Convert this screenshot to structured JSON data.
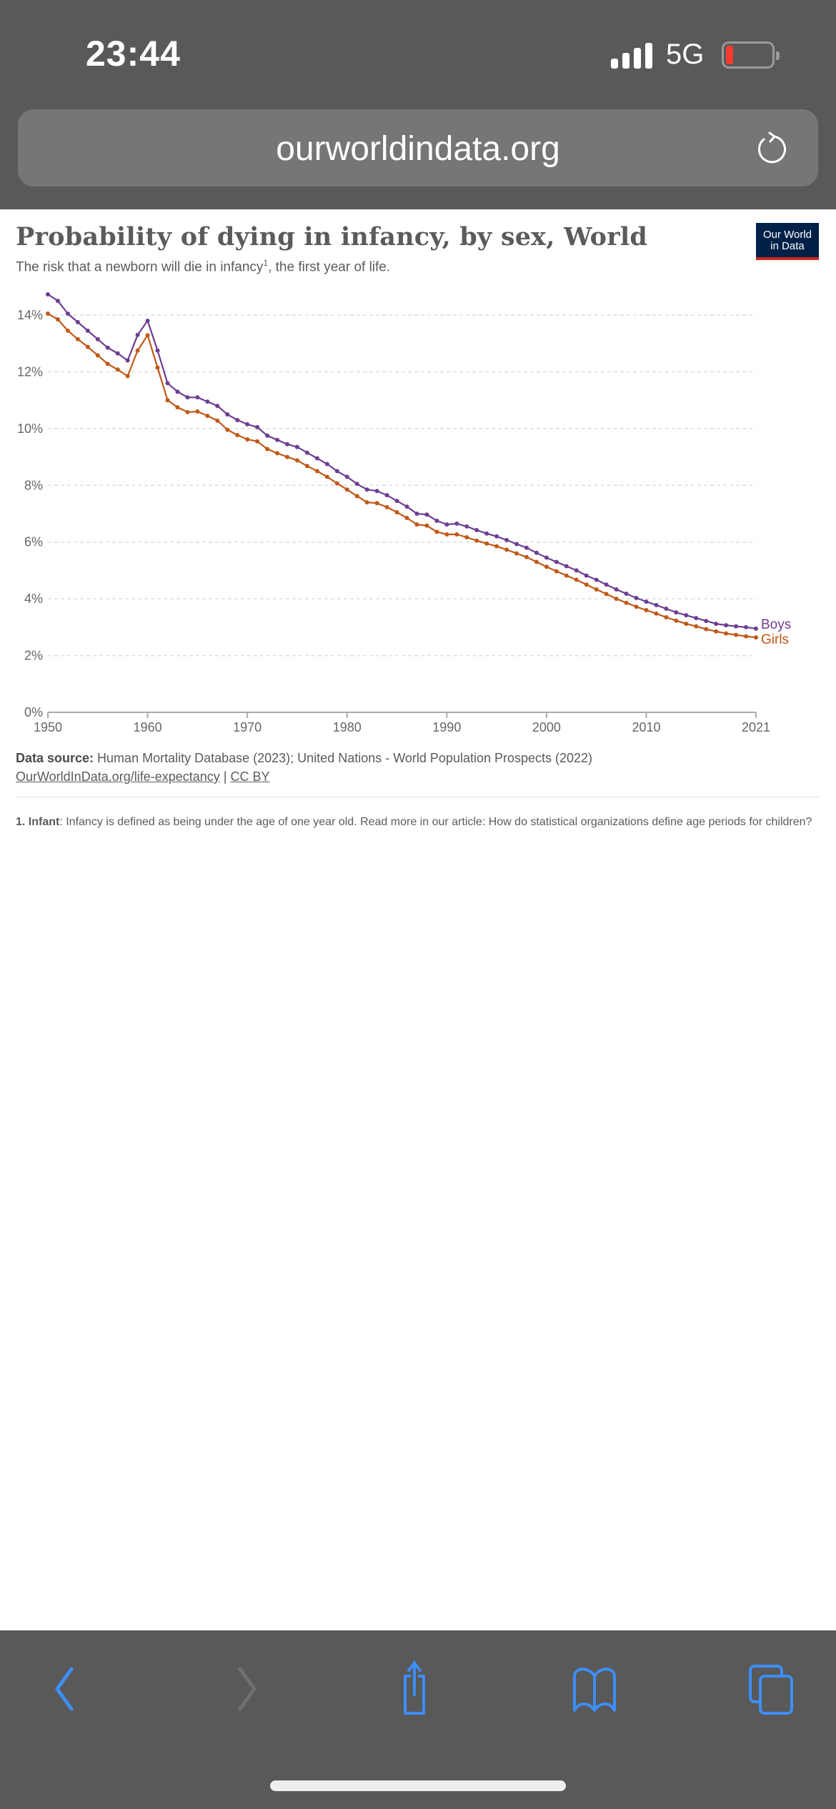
{
  "status_bar": {
    "time": "23:44",
    "network": "5G",
    "battery_level": "low"
  },
  "browser": {
    "url": "ourworldindata.org",
    "reload_icon": "reload-icon",
    "toolbar": {
      "back_icon": "chevron-left-icon",
      "forward_icon": "chevron-right-icon",
      "share_icon": "share-icon",
      "bookmarks_icon": "book-icon",
      "tabs_icon": "tabs-icon"
    }
  },
  "page": {
    "logo_line1": "Our World",
    "logo_line2": "in Data",
    "source_label": "Data source:",
    "source_text": " Human Mortality Database (2023); United Nations - World Population Prospects (2022)",
    "link_text": "OurWorldInData.org/life-expectancy",
    "link_sep": " | ",
    "license_text": "CC BY",
    "footnote_label": "1. Infant",
    "footnote_text": ": Infancy is defined as being under the age of one year old. Read more in our article: How do statistical organizations define age periods for children?"
  },
  "chart_data": {
    "type": "line",
    "title": "Probability of dying in infancy, by sex, World",
    "subtitle": "The risk that a newborn will die in infancy",
    "subtitle_sup": "1",
    "subtitle_end": ", the first year of life.",
    "xlabel": "",
    "ylabel": "",
    "ylim": [
      0,
      14
    ],
    "xlim": [
      1950,
      2021
    ],
    "y_ticks": [
      "0%",
      "2%",
      "4%",
      "6%",
      "8%",
      "10%",
      "12%",
      "14%"
    ],
    "y_tick_values": [
      0,
      2,
      4,
      6,
      8,
      10,
      12,
      14
    ],
    "x_ticks": [
      "1950",
      "1960",
      "1970",
      "1980",
      "1990",
      "2000",
      "2010",
      "2021"
    ],
    "x_tick_values": [
      1950,
      1960,
      1970,
      1980,
      1990,
      2000,
      2010,
      2021
    ],
    "grid": "horizontal-dashed",
    "legend": "right-inline",
    "x": [
      1950,
      1951,
      1952,
      1953,
      1954,
      1955,
      1956,
      1957,
      1958,
      1959,
      1960,
      1961,
      1962,
      1963,
      1964,
      1965,
      1966,
      1967,
      1968,
      1969,
      1970,
      1971,
      1972,
      1973,
      1974,
      1975,
      1976,
      1977,
      1978,
      1979,
      1980,
      1981,
      1982,
      1983,
      1984,
      1985,
      1986,
      1987,
      1988,
      1989,
      1990,
      1991,
      1992,
      1993,
      1994,
      1995,
      1996,
      1997,
      1998,
      1999,
      2000,
      2001,
      2002,
      2003,
      2004,
      2005,
      2006,
      2007,
      2008,
      2009,
      2010,
      2011,
      2012,
      2013,
      2014,
      2015,
      2016,
      2017,
      2018,
      2019,
      2020,
      2021
    ],
    "series": [
      {
        "name": "Boys",
        "color": "#6d3e91",
        "values": [
          14.73,
          14.5,
          14.05,
          13.75,
          13.45,
          13.15,
          12.85,
          12.65,
          12.4,
          13.3,
          13.8,
          12.75,
          11.6,
          11.3,
          11.1,
          11.1,
          10.95,
          10.8,
          10.5,
          10.3,
          10.15,
          10.05,
          9.75,
          9.6,
          9.45,
          9.35,
          9.15,
          8.95,
          8.75,
          8.5,
          8.3,
          8.05,
          7.85,
          7.8,
          7.65,
          7.45,
          7.25,
          7.0,
          6.97,
          6.75,
          6.62,
          6.65,
          6.55,
          6.42,
          6.3,
          6.2,
          6.07,
          5.93,
          5.8,
          5.62,
          5.45,
          5.3,
          5.15,
          5.0,
          4.82,
          4.67,
          4.5,
          4.33,
          4.18,
          4.03,
          3.9,
          3.78,
          3.65,
          3.52,
          3.42,
          3.32,
          3.22,
          3.12,
          3.07,
          3.03,
          3.0,
          2.95
        ]
      },
      {
        "name": "Girls",
        "color": "#c05917",
        "values": [
          14.05,
          13.85,
          13.45,
          13.15,
          12.88,
          12.58,
          12.28,
          12.08,
          11.85,
          12.75,
          13.29,
          12.15,
          11.0,
          10.75,
          10.58,
          10.6,
          10.45,
          10.28,
          9.96,
          9.77,
          9.62,
          9.55,
          9.28,
          9.13,
          9.0,
          8.88,
          8.68,
          8.5,
          8.3,
          8.07,
          7.85,
          7.62,
          7.4,
          7.37,
          7.23,
          7.05,
          6.85,
          6.62,
          6.58,
          6.36,
          6.27,
          6.27,
          6.17,
          6.05,
          5.95,
          5.85,
          5.73,
          5.6,
          5.47,
          5.3,
          5.13,
          4.97,
          4.82,
          4.67,
          4.5,
          4.33,
          4.17,
          4.0,
          3.86,
          3.72,
          3.6,
          3.48,
          3.35,
          3.23,
          3.12,
          3.03,
          2.93,
          2.85,
          2.78,
          2.73,
          2.68,
          2.64
        ]
      }
    ]
  }
}
